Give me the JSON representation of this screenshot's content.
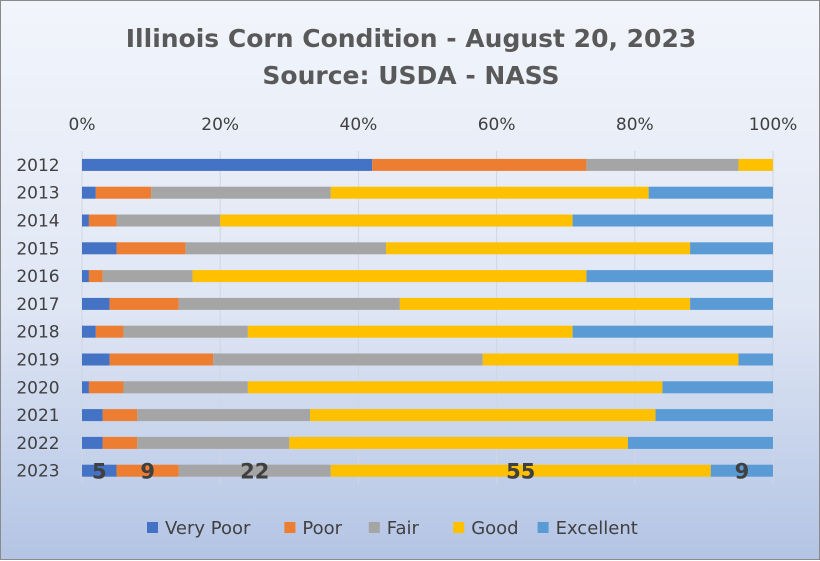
{
  "chart_data": {
    "type": "bar",
    "orientation": "horizontal",
    "stacked": "percent",
    "title": "Illinois Corn Condition - August 20, 2023",
    "subtitle": "Source: USDA - NASS",
    "xlabel": "",
    "ylabel": "",
    "xlim": [
      0,
      100
    ],
    "x_ticks": [
      "0%",
      "20%",
      "40%",
      "60%",
      "80%",
      "100%"
    ],
    "grid": true,
    "legend_position": "bottom",
    "categories": [
      "2012",
      "2013",
      "2014",
      "2015",
      "2016",
      "2017",
      "2018",
      "2019",
      "2020",
      "2021",
      "2022",
      "2023"
    ],
    "series": [
      {
        "name": "Very Poor",
        "color": "#4472c4",
        "values": [
          42,
          2,
          1,
          5,
          1,
          4,
          2,
          4,
          1,
          3,
          3,
          5
        ]
      },
      {
        "name": "Poor",
        "color": "#ed7d31",
        "values": [
          31,
          8,
          4,
          10,
          2,
          10,
          4,
          15,
          5,
          5,
          5,
          9
        ]
      },
      {
        "name": "Fair",
        "color": "#a5a5a5",
        "values": [
          22,
          26,
          15,
          29,
          13,
          32,
          18,
          39,
          18,
          25,
          22,
          22
        ]
      },
      {
        "name": "Good",
        "color": "#ffc000",
        "values": [
          5,
          46,
          51,
          44,
          57,
          42,
          47,
          37,
          60,
          50,
          49,
          55
        ]
      },
      {
        "name": "Excellent",
        "color": "#5b9bd5",
        "values": [
          0,
          18,
          29,
          12,
          27,
          12,
          29,
          5,
          16,
          17,
          21,
          9
        ]
      }
    ],
    "data_labels": {
      "category": "2023",
      "values": [
        "5",
        "9",
        "22",
        "55",
        "9"
      ]
    }
  }
}
